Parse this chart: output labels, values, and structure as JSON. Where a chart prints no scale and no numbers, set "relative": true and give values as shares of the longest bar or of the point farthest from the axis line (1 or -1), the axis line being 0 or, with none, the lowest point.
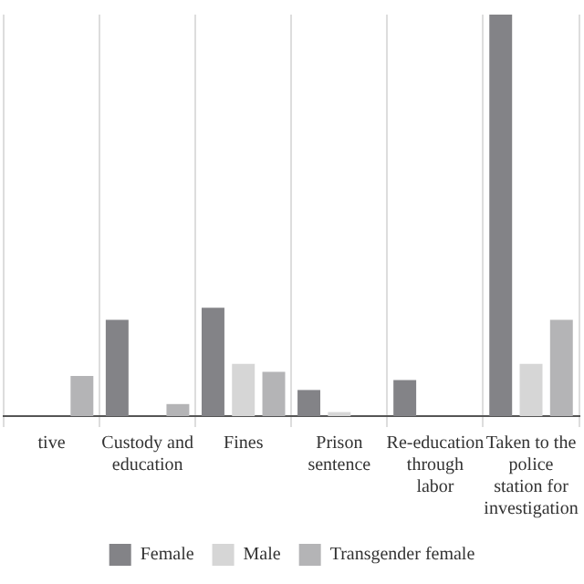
{
  "chart_data": {
    "type": "bar",
    "relative": true,
    "categories": [
      "tive",
      "Custody and education",
      "Fines",
      "Prison sentence",
      "Re-education through labor",
      "Taken to the police station for investigation"
    ],
    "series": [
      {
        "name": "Female",
        "color": "#838387",
        "values": [
          null,
          0.24,
          0.27,
          0.065,
          0.09,
          1
        ]
      },
      {
        "name": "Male",
        "color": "#d6d6d6",
        "values": [
          null,
          0,
          0.13,
          0.01,
          0,
          0.13
        ]
      },
      {
        "name": "Transgender female",
        "color": "#b4b4b6",
        "values": [
          0.1,
          0.03,
          0.11,
          0,
          0,
          0.24
        ]
      }
    ],
    "grid": "x",
    "legend": "bottom"
  }
}
